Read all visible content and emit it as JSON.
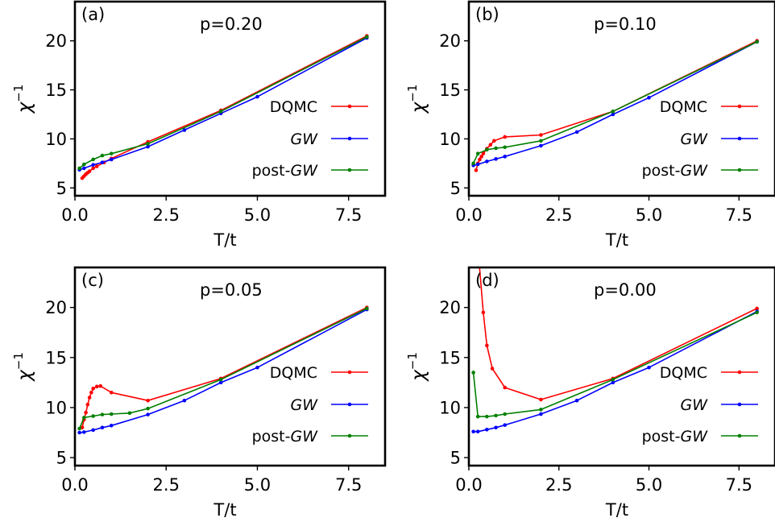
{
  "colors": {
    "DQMC": "#ff0000",
    "GW": "#0000ff",
    "post-GW": "#008000"
  },
  "chart_data": [
    {
      "type": "line",
      "panel_label": "(a)",
      "title": "p=0.20",
      "xlabel": "T/t",
      "ylabel": "χ",
      "ylabel_sup": "−1",
      "xlim": [
        0,
        8.5
      ],
      "ylim": [
        4.2,
        24
      ],
      "xticks": [
        0.0,
        2.5,
        5.0,
        7.5
      ],
      "xtick_labels": [
        "0.0",
        "2.5",
        "5.0",
        "7.5"
      ],
      "yticks": [
        5,
        10,
        15,
        20
      ],
      "ytick_labels": [
        "5",
        "10",
        "15",
        "20"
      ],
      "grid": false,
      "legend_position": "center-right",
      "series": [
        {
          "key": "DQMC",
          "name": "DQMC",
          "color": "#ff0000",
          "x": [
            0.2,
            0.25,
            0.3,
            0.35,
            0.4,
            0.5,
            0.6,
            0.8,
            1.0,
            2.0,
            4.0,
            8.0
          ],
          "y": [
            6.0,
            6.2,
            6.4,
            6.55,
            6.7,
            7.0,
            7.2,
            7.6,
            8.0,
            9.7,
            12.9,
            20.5
          ]
        },
        {
          "key": "GW",
          "name": "GW",
          "color": "#0000ff",
          "x": [
            0.125,
            0.25,
            0.5,
            0.75,
            1.0,
            2.0,
            3.0,
            4.0,
            5.0,
            8.0
          ],
          "y": [
            6.85,
            7.0,
            7.35,
            7.6,
            7.9,
            9.2,
            10.9,
            12.6,
            14.3,
            20.3
          ]
        },
        {
          "key": "post-GW",
          "name": "post-GW",
          "color": "#008000",
          "x": [
            0.125,
            0.25,
            0.5,
            0.75,
            1.0,
            2.0,
            4.0,
            8.0
          ],
          "y": [
            7.0,
            7.4,
            7.9,
            8.3,
            8.5,
            9.5,
            12.8,
            20.4
          ]
        }
      ]
    },
    {
      "type": "line",
      "panel_label": "(b)",
      "title": "p=0.10",
      "xlabel": "T/t",
      "ylabel": "χ",
      "ylabel_sup": "−1",
      "xlim": [
        0,
        8.5
      ],
      "ylim": [
        4.2,
        24
      ],
      "xticks": [
        0.0,
        2.5,
        5.0,
        7.5
      ],
      "xtick_labels": [
        "0.0",
        "2.5",
        "5.0",
        "7.5"
      ],
      "yticks": [
        5,
        10,
        15,
        20
      ],
      "ytick_labels": [
        "5",
        "10",
        "15",
        "20"
      ],
      "grid": false,
      "legend_position": "center-right",
      "series": [
        {
          "key": "DQMC",
          "name": "DQMC",
          "color": "#ff0000",
          "x": [
            0.2,
            0.25,
            0.3,
            0.35,
            0.4,
            0.5,
            0.6,
            0.7,
            1.0,
            2.0,
            4.0,
            8.0
          ],
          "y": [
            6.8,
            7.5,
            7.9,
            8.2,
            8.5,
            9.0,
            9.4,
            9.8,
            10.2,
            10.4,
            12.8,
            20.0
          ]
        },
        {
          "key": "GW",
          "name": "GW",
          "color": "#0000ff",
          "x": [
            0.125,
            0.25,
            0.5,
            0.75,
            1.0,
            2.0,
            3.0,
            4.0,
            5.0,
            8.0
          ],
          "y": [
            7.3,
            7.4,
            7.7,
            7.95,
            8.2,
            9.3,
            10.7,
            12.5,
            14.2,
            19.9
          ]
        },
        {
          "key": "post-GW",
          "name": "post-GW",
          "color": "#008000",
          "x": [
            0.125,
            0.25,
            0.5,
            0.75,
            1.0,
            2.0,
            4.0,
            8.0
          ],
          "y": [
            7.5,
            8.5,
            8.9,
            9.05,
            9.15,
            9.8,
            12.8,
            19.9
          ]
        }
      ]
    },
    {
      "type": "line",
      "panel_label": "(c)",
      "title": "p=0.05",
      "xlabel": "T/t",
      "ylabel": "χ",
      "ylabel_sup": "−1",
      "xlim": [
        0,
        8.5
      ],
      "ylim": [
        4.2,
        24
      ],
      "xticks": [
        0.0,
        2.5,
        5.0,
        7.5
      ],
      "xtick_labels": [
        "0.0",
        "2.5",
        "5.0",
        "7.5"
      ],
      "yticks": [
        5,
        10,
        15,
        20
      ],
      "ytick_labels": [
        "5",
        "10",
        "15",
        "20"
      ],
      "grid": false,
      "legend_position": "center-right",
      "series": [
        {
          "key": "DQMC",
          "name": "DQMC",
          "color": "#ff0000",
          "x": [
            0.2,
            0.25,
            0.3,
            0.35,
            0.4,
            0.45,
            0.5,
            0.6,
            0.7,
            1.0,
            2.0,
            4.0,
            8.0
          ],
          "y": [
            8.0,
            8.8,
            9.5,
            10.3,
            11.0,
            11.5,
            11.9,
            12.1,
            12.15,
            11.5,
            10.7,
            12.9,
            20.0
          ]
        },
        {
          "key": "GW",
          "name": "GW",
          "color": "#0000ff",
          "x": [
            0.125,
            0.25,
            0.5,
            0.75,
            1.0,
            2.0,
            3.0,
            4.0,
            5.0,
            8.0
          ],
          "y": [
            7.5,
            7.55,
            7.75,
            8.0,
            8.2,
            9.3,
            10.7,
            12.5,
            14.0,
            19.8
          ]
        },
        {
          "key": "post-GW",
          "name": "post-GW",
          "color": "#008000",
          "x": [
            0.125,
            0.25,
            0.5,
            0.75,
            1.0,
            1.5,
            2.0,
            4.0,
            8.0
          ],
          "y": [
            7.9,
            9.0,
            9.15,
            9.3,
            9.35,
            9.45,
            9.9,
            12.8,
            19.9
          ]
        }
      ]
    },
    {
      "type": "line",
      "panel_label": "(d)",
      "title": "p=0.00",
      "xlabel": "T/t",
      "ylabel": "χ",
      "ylabel_sup": "−1",
      "xlim": [
        0,
        8.5
      ],
      "ylim": [
        4.2,
        24
      ],
      "xticks": [
        0.0,
        2.5,
        5.0,
        7.5
      ],
      "xtick_labels": [
        "0.0",
        "2.5",
        "5.0",
        "7.5"
      ],
      "yticks": [
        5,
        10,
        15,
        20
      ],
      "ytick_labels": [
        "5",
        "10",
        "15",
        "20"
      ],
      "grid": false,
      "legend_position": "center-right",
      "series": [
        {
          "key": "DQMC",
          "name": "DQMC",
          "color": "#ff0000",
          "x": [
            0.25,
            0.4,
            0.5,
            0.65,
            1.0,
            2.0,
            4.0,
            8.0
          ],
          "y": [
            26.0,
            19.5,
            16.2,
            13.9,
            12.0,
            10.8,
            12.9,
            19.9
          ]
        },
        {
          "key": "GW",
          "name": "GW",
          "color": "#0000ff",
          "x": [
            0.125,
            0.25,
            0.5,
            0.75,
            1.0,
            2.0,
            3.0,
            4.0,
            5.0,
            8.0
          ],
          "y": [
            7.6,
            7.6,
            7.8,
            8.0,
            8.25,
            9.35,
            10.7,
            12.5,
            14.0,
            19.6
          ]
        },
        {
          "key": "post-GW",
          "name": "post-GW",
          "color": "#008000",
          "x": [
            0.125,
            0.25,
            0.5,
            0.75,
            1.0,
            2.0,
            4.0,
            8.0
          ],
          "y": [
            13.5,
            9.1,
            9.1,
            9.2,
            9.35,
            9.8,
            12.8,
            19.5
          ]
        }
      ]
    }
  ]
}
